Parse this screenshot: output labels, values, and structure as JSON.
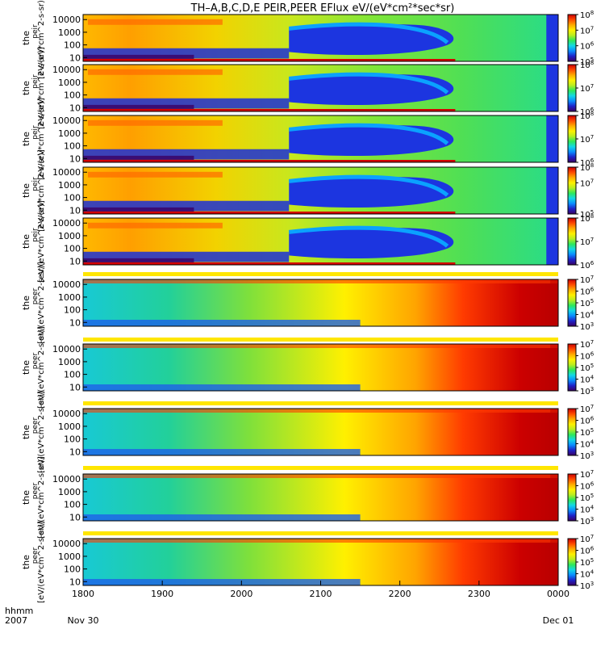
{
  "title": "TH–A,B,C,D,E PEIR,PEER EFlux eV/(eV*cm²*sec*sr)",
  "footer": {
    "left_line1": "hhmm",
    "left_line2": "2007",
    "start_date": "Nov 30",
    "end_date": "Dec 01"
  },
  "chart_data": {
    "type": "heatmap",
    "title": "TH–A,B,C,D,E PEIR,PEER EFlux eV/(eV*cm²*sec*sr)",
    "x_ticks": [
      "1800",
      "1900",
      "2000",
      "2100",
      "2200",
      "2300",
      "0000"
    ],
    "x_range_hours": [
      18,
      24
    ],
    "y_ticks": [
      "10",
      "100",
      "1000",
      "10000"
    ],
    "y_scale": "log",
    "ylim": [
      5,
      25000
    ],
    "colorscale": [
      "#3a0064",
      "#1e22c8",
      "#0a8cff",
      "#12d8e6",
      "#2ee85a",
      "#b8ee20",
      "#fff000",
      "#ffaa00",
      "#ff4a00",
      "#cc0000"
    ],
    "panels": [
      {
        "group": "ion",
        "ylabel_line1": "the",
        "ylabel_line2": "peir",
        "ylabel_line3": "[eV/(eV*cm^2-s-sr)]",
        "cbar_ticks": [
          "10^5",
          "10^6",
          "10^7",
          "10^8"
        ],
        "cbar_range": [
          5,
          8
        ]
      },
      {
        "group": "ion",
        "ylabel_line1": "the",
        "ylabel_line2": "peir",
        "ylabel_line3": "[eV/(eV*cm^2-s-sr)]",
        "cbar_ticks": [
          "10^6",
          "10^7",
          "10^8"
        ],
        "cbar_range": [
          6,
          8
        ]
      },
      {
        "group": "ion",
        "ylabel_line1": "the",
        "ylabel_line2": "peir",
        "ylabel_line3": "[eV/(eV*cm^2-s-sr)]",
        "cbar_ticks": [
          "10^6",
          "10^7",
          "10^8"
        ],
        "cbar_range": [
          6,
          8
        ]
      },
      {
        "group": "ion",
        "ylabel_line1": "the",
        "ylabel_line2": "peir",
        "ylabel_line3": "[eV/(eV*cm^2-s-sr)]",
        "cbar_ticks": [
          "10^5",
          "10^7",
          "10^8"
        ],
        "cbar_range": [
          5,
          8
        ]
      },
      {
        "group": "ion",
        "ylabel_line1": "the",
        "ylabel_line2": "peir",
        "ylabel_line3": "[eV/(eV*cm^2-s-sr)]",
        "cbar_ticks": [
          "10^6",
          "10^7",
          "10^8"
        ],
        "cbar_range": [
          6,
          8
        ]
      },
      {
        "group": "electron",
        "ylabel_line1": "the",
        "ylabel_line2": "peer",
        "ylabel_line3": "[eV/(eV*cm^2-s-sr)]",
        "cbar_ticks": [
          "10^3",
          "10^4",
          "10^5",
          "10^6",
          "10^7"
        ],
        "cbar_range": [
          3,
          7
        ]
      },
      {
        "group": "electron",
        "ylabel_line1": "the",
        "ylabel_line2": "peer",
        "ylabel_line3": "[eV/(eV*cm^2-s-sr)]",
        "cbar_ticks": [
          "10^3",
          "10^4",
          "10^5",
          "10^6",
          "10^7"
        ],
        "cbar_range": [
          3,
          7
        ]
      },
      {
        "group": "electron",
        "ylabel_line1": "the",
        "ylabel_line2": "peer",
        "ylabel_line3": "[eV/(eV*cm^2-s-sr)]",
        "cbar_ticks": [
          "10^3",
          "10^4",
          "10^5",
          "10^6",
          "10^7"
        ],
        "cbar_range": [
          3,
          7
        ]
      },
      {
        "group": "electron",
        "ylabel_line1": "the",
        "ylabel_line2": "peer",
        "ylabel_line3": "[eV/(eV*cm^2-s-sr)]",
        "cbar_ticks": [
          "10^3",
          "10^4",
          "10^5",
          "10^6",
          "10^7"
        ],
        "cbar_range": [
          3,
          7
        ]
      },
      {
        "group": "electron",
        "ylabel_line1": "the",
        "ylabel_line2": "peer",
        "ylabel_line3": "[eV/(eV*cm^2-s-sr)]",
        "cbar_ticks": [
          "10^3",
          "10^4",
          "10^5",
          "10^6",
          "10^7"
        ],
        "cbar_range": [
          3,
          7
        ]
      }
    ]
  }
}
